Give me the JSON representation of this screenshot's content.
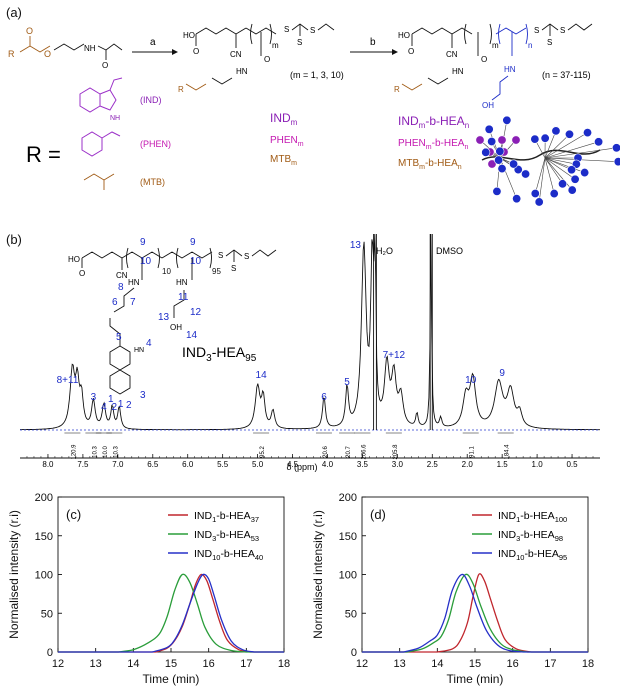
{
  "panel_a": {
    "label": "(a)",
    "arrow_a": "a",
    "arrow_b": "b",
    "m_note": "(m = 1, 3, 10)",
    "n_note": "(n = 37-115)",
    "r_equals": "R =",
    "r_groups": [
      "(IND)",
      "(PHEN)",
      "(MTB)"
    ],
    "macro_names": [
      "IND",
      "PHEN",
      "MTB"
    ],
    "macro_sub": "m",
    "block_names": [
      "IND",
      "PHEN",
      "MTB"
    ],
    "block_mid": "-b-HEA",
    "block_sub_m": "m",
    "block_sub_n": "n",
    "atoms": {
      "ho": "HO",
      "cn": "CN",
      "oh": "OH",
      "nh": "NH",
      "hn": "HN",
      "o": "O",
      "s": "S",
      "r": "R",
      "m": "m",
      "n": "n"
    },
    "colors": {
      "ind": "#8a1fb5",
      "phen": "#c418b0",
      "mtb": "#a05a14",
      "hea": "#1c2cc8"
    }
  },
  "panel_b": {
    "label": "(b)",
    "compound": "IND",
    "compound_sub": "3",
    "compound_mid": "-HEA",
    "compound_sub2": "95",
    "solvent_labels": [
      "H₂O",
      "DMSO"
    ],
    "struct_numbers": [
      "9",
      "10",
      "9",
      "10",
      "10",
      "95",
      "8",
      "7",
      "6",
      "11",
      "12",
      "13",
      "14",
      "5",
      "4",
      "1",
      "2",
      "3",
      "OH",
      "HN"
    ],
    "peak_labels": [
      "8+11",
      "3",
      "4",
      "2",
      "1",
      "14",
      "6",
      "5",
      "13",
      "7+12",
      "10",
      "9"
    ],
    "integrals": [
      "120.9",
      "10.3",
      "10.0",
      "10.3",
      "95.2",
      "20.6",
      "20.7",
      "206.6",
      "205.8",
      "91.1",
      "184.4"
    ],
    "xlabel": "δ (ppm)",
    "xticks": [
      "8.0",
      "7.5",
      "7.0",
      "6.5",
      "6.0",
      "5.5",
      "5.0",
      "4.5",
      "4.0",
      "3.5",
      "3.0",
      "2.5",
      "2.0",
      "1.5",
      "1.0",
      "0.5"
    ]
  },
  "chart_data": [
    {
      "panel": "(c)",
      "type": "line",
      "xlabel": "Time (min)",
      "ylabel": "Normalised intensity (r.i)",
      "xlim": [
        12,
        18
      ],
      "ylim": [
        0,
        200
      ],
      "xticks": [
        12,
        13,
        14,
        15,
        16,
        17,
        18
      ],
      "yticks": [
        0,
        50,
        100,
        150,
        200
      ],
      "legend_position": "top-right",
      "series": [
        {
          "name": "IND1-b-HEA37",
          "label_base": "IND",
          "label_sub1": "1",
          "label_mid": "-b-HEA",
          "label_sub2": "37",
          "color": "#c0262d",
          "x": [
            14.6,
            14.9,
            15.1,
            15.3,
            15.5,
            15.65,
            15.8,
            15.95,
            16.1,
            16.3,
            16.5,
            16.8,
            17.1
          ],
          "y": [
            0,
            5,
            15,
            33,
            62,
            87,
            100,
            92,
            70,
            38,
            15,
            3,
            0
          ]
        },
        {
          "name": "IND3-b-HEA53",
          "label_base": "IND",
          "label_sub1": "3",
          "label_mid": "-b-HEA",
          "label_sub2": "53",
          "color": "#2a9d3a",
          "x": [
            13.6,
            14.0,
            14.4,
            14.7,
            14.9,
            15.1,
            15.3,
            15.5,
            15.7,
            15.9,
            16.2,
            16.6,
            17.0
          ],
          "y": [
            0,
            3,
            12,
            24,
            46,
            80,
            100,
            90,
            62,
            32,
            10,
            2,
            0
          ]
        },
        {
          "name": "IND10-b-HEA40",
          "label_base": "IND",
          "label_sub1": "10",
          "label_mid": "-b-HEA",
          "label_sub2": "40",
          "color": "#2630c8",
          "x": [
            14.5,
            14.9,
            15.1,
            15.3,
            15.5,
            15.7,
            15.85,
            16.0,
            16.15,
            16.35,
            16.6,
            16.9,
            17.2
          ],
          "y": [
            0,
            6,
            16,
            35,
            62,
            88,
            100,
            94,
            72,
            40,
            14,
            3,
            0
          ]
        }
      ]
    },
    {
      "panel": "(d)",
      "type": "line",
      "xlabel": "Time (min)",
      "ylabel": "Normalised intensity (r.i)",
      "xlim": [
        12,
        18
      ],
      "ylim": [
        0,
        200
      ],
      "xticks": [
        12,
        13,
        14,
        15,
        16,
        17,
        18
      ],
      "yticks": [
        0,
        50,
        100,
        150,
        200
      ],
      "legend_position": "top-right",
      "series": [
        {
          "name": "IND1-b-HEA100",
          "label_base": "IND",
          "label_sub1": "1",
          "label_mid": "-b-HEA",
          "label_sub2": "100",
          "color": "#c0262d",
          "x": [
            14.0,
            14.4,
            14.6,
            14.8,
            14.95,
            15.1,
            15.25,
            15.4,
            15.6,
            15.8,
            16.1,
            16.5
          ],
          "y": [
            0,
            4,
            14,
            38,
            72,
            100,
            92,
            70,
            40,
            16,
            4,
            0
          ]
        },
        {
          "name": "IND3-b-HEA98",
          "label_base": "IND",
          "label_sub1": "3",
          "label_mid": "-b-HEA",
          "label_sub2": "98",
          "color": "#2a9d3a",
          "x": [
            13.2,
            13.6,
            13.9,
            14.1,
            14.3,
            14.5,
            14.75,
            14.95,
            15.15,
            15.4,
            15.7,
            16.0,
            16.4
          ],
          "y": [
            0,
            4,
            12,
            20,
            42,
            78,
            100,
            88,
            60,
            30,
            10,
            3,
            0
          ]
        },
        {
          "name": "IND10-b-HEA95",
          "label_base": "IND",
          "label_sub1": "10",
          "label_mid": "-b-HEA",
          "label_sub2": "95",
          "color": "#2630c8",
          "x": [
            13.1,
            13.5,
            13.8,
            14.0,
            14.2,
            14.4,
            14.65,
            14.85,
            15.05,
            15.3,
            15.6,
            15.9,
            16.3
          ],
          "y": [
            0,
            5,
            14,
            22,
            44,
            80,
            100,
            86,
            58,
            28,
            9,
            2,
            0
          ]
        }
      ]
    }
  ]
}
